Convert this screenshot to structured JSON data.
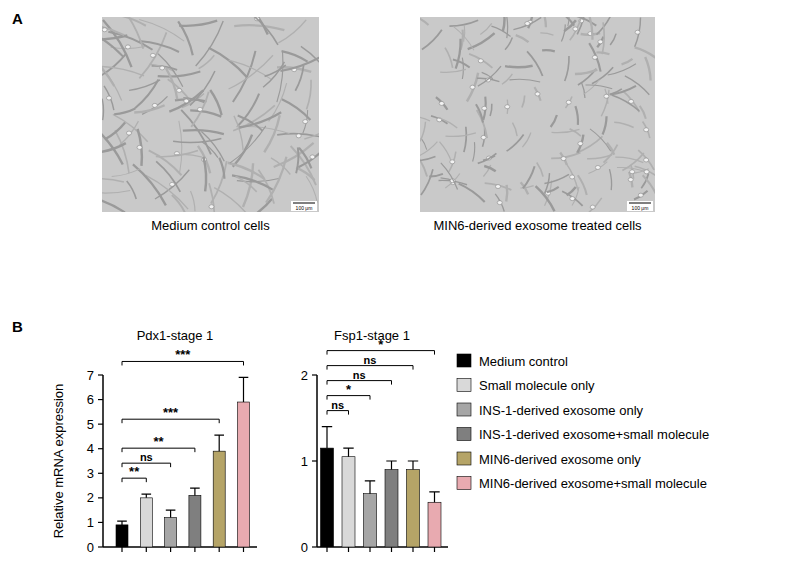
{
  "chart_data": [
    {
      "type": "bar",
      "title": "Pdx1-stage 1",
      "y_label": "Relative mRNA expression",
      "categories": [
        null,
        null,
        null,
        null,
        null,
        null
      ],
      "values": [
        0.9,
        2.0,
        1.2,
        2.1,
        3.9,
        5.9
      ],
      "errors": [
        0.15,
        0.15,
        0.3,
        0.3,
        0.65,
        1.0
      ],
      "colors": [
        "#000000",
        "#d9d9d9",
        "#a6a6a6",
        "#7f7f7f",
        "#b5a467",
        "#e8aab0"
      ],
      "ylim": [
        0,
        7
      ],
      "yticks": [
        0,
        1,
        2,
        3,
        4,
        5,
        6,
        7
      ],
      "tick_labels": "y",
      "comparisons": [
        {
          "from": 0,
          "to": 1,
          "label": "**"
        },
        {
          "from": 0,
          "to": 2,
          "label": "ns"
        },
        {
          "from": 0,
          "to": 3,
          "label": "**"
        },
        {
          "from": 0,
          "to": 4,
          "label": "***"
        },
        {
          "from": 0,
          "to": 5,
          "label": "***"
        }
      ]
    },
    {
      "type": "bar",
      "title": "Fsp1-stage 1",
      "categories": [
        null,
        null,
        null,
        null,
        null,
        null
      ],
      "values": [
        1.15,
        1.05,
        0.62,
        0.9,
        0.9,
        0.52
      ],
      "errors": [
        0.25,
        0.1,
        0.15,
        0.1,
        0.1,
        0.12
      ],
      "colors": [
        "#000000",
        "#d9d9d9",
        "#a6a6a6",
        "#7f7f7f",
        "#b5a467",
        "#e8aab0"
      ],
      "ylim": [
        0,
        2
      ],
      "yticks": [
        0,
        1,
        2
      ],
      "tick_labels": "y",
      "comparisons": [
        {
          "from": 0,
          "to": 1,
          "label": "ns"
        },
        {
          "from": 0,
          "to": 2,
          "label": "*"
        },
        {
          "from": 0,
          "to": 3,
          "label": "ns"
        },
        {
          "from": 0,
          "to": 4,
          "label": "ns"
        },
        {
          "from": 0,
          "to": 5,
          "label": "*"
        }
      ]
    }
  ],
  "figure": {
    "panel_labels": [
      "A",
      "B"
    ],
    "images": [
      {
        "caption": "Medium control cells",
        "scale_bar": "100 μm"
      },
      {
        "caption": "MIN6-derived exosome treated cells",
        "scale_bar": "100 μm"
      }
    ],
    "legend": [
      {
        "name": "Medium control",
        "color": "#000000"
      },
      {
        "name": "Small molecule only",
        "color": "#d9d9d9"
      },
      {
        "name": "INS-1-derived exosome only",
        "color": "#a6a6a6"
      },
      {
        "name": "INS-1-derived exosome+small molecule",
        "color": "#7f7f7f"
      },
      {
        "name": "MIN6-derived exosome only",
        "color": "#b5a467"
      },
      {
        "name": "MIN6-derived exosome+small molecule",
        "color": "#e8aab0"
      }
    ]
  }
}
